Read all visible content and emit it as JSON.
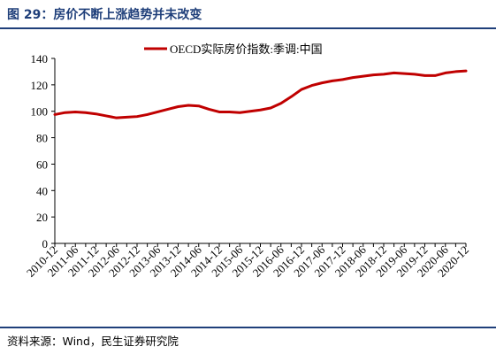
{
  "header": {
    "title": "图 29：房价不断上涨趋势并未改变"
  },
  "footer": {
    "source": "资料来源：Wind，民生证券研究院"
  },
  "colors": {
    "line": "#c00000",
    "axis": "#000000",
    "title_accent": "#1f3f7a"
  },
  "chart_data": {
    "type": "line",
    "title": "",
    "xlabel": "",
    "ylabel": "",
    "ylim": [
      0,
      140
    ],
    "yticks": [
      0,
      20,
      40,
      60,
      80,
      100,
      120,
      140
    ],
    "grid": false,
    "legend_position": "top-center",
    "xtick_labels": [
      "2010-12",
      "2011-06",
      "2011-12",
      "2012-06",
      "2012-12",
      "2013-06",
      "2013-12",
      "2014-06",
      "2014-12",
      "2015-06",
      "2015-12",
      "2016-06",
      "2016-12",
      "2017-06",
      "2017-12",
      "2018-06",
      "2018-12",
      "2019-06",
      "2019-12",
      "2020-06",
      "2020-12"
    ],
    "x": [
      "2010-12",
      "2011-03",
      "2011-06",
      "2011-09",
      "2011-12",
      "2012-03",
      "2012-06",
      "2012-09",
      "2012-12",
      "2013-03",
      "2013-06",
      "2013-09",
      "2013-12",
      "2014-03",
      "2014-06",
      "2014-09",
      "2014-12",
      "2015-03",
      "2015-06",
      "2015-09",
      "2015-12",
      "2016-03",
      "2016-06",
      "2016-09",
      "2016-12",
      "2017-03",
      "2017-06",
      "2017-09",
      "2017-12",
      "2018-03",
      "2018-06",
      "2018-09",
      "2018-12",
      "2019-03",
      "2019-06",
      "2019-09",
      "2019-12",
      "2020-03",
      "2020-06",
      "2020-09",
      "2020-12"
    ],
    "series": [
      {
        "name": "OECD实际房价指数:季调:中国",
        "values": [
          97.5,
          99,
          99.5,
          99,
          98,
          96.5,
          95,
          95.5,
          96,
          97.5,
          99.5,
          101.5,
          103.5,
          104.5,
          104,
          101.5,
          99.5,
          99.5,
          99,
          100,
          101,
          102.5,
          106,
          111,
          116.5,
          119.5,
          121.5,
          123,
          124,
          125.5,
          126.5,
          127.5,
          128,
          129,
          128.5,
          128,
          127,
          127,
          129,
          130,
          130.5
        ]
      }
    ]
  }
}
